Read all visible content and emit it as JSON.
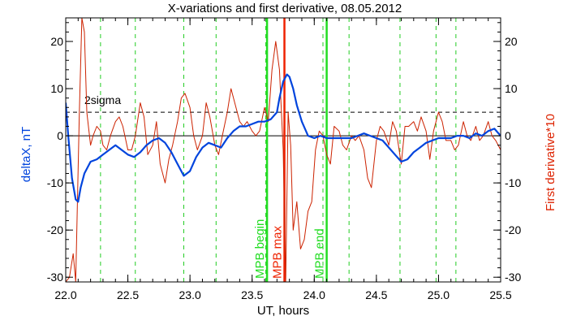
{
  "chart_data": {
    "type": "line",
    "title": "X-variations and first derivative, 08.05.2012",
    "xlabel": "UT, hours",
    "ylabel_left": "deltaX, nT",
    "ylabel_right": "First derivative*10",
    "xlim": [
      22.0,
      25.5
    ],
    "ylim": [
      -31,
      25
    ],
    "x_ticks": [
      "22.0",
      "22.5",
      "23.0",
      "23.5",
      "24.0",
      "24.5",
      "25.0",
      "25.5"
    ],
    "y_ticks": [
      "-30",
      "-20",
      "-10",
      "0",
      "10",
      "20"
    ],
    "threshold": {
      "label": "2sigma",
      "value": 5
    },
    "colors": {
      "deltax": "#0044dd",
      "derivative": "#cc2200",
      "mpb": "#22dd22",
      "mpb_max": "#ee2200",
      "dashed": "#22cc22"
    },
    "dashed_lines": [
      22.28,
      22.56,
      22.95,
      23.21,
      23.61,
      23.76,
      24.07,
      24.28,
      24.69,
      24.98,
      25.14
    ],
    "markers": [
      {
        "label": "MPB begin",
        "x": 23.62,
        "kind": "mpb"
      },
      {
        "label": "MPB max",
        "x": 23.76,
        "kind": "mpb_max"
      },
      {
        "label": "MPB end",
        "x": 24.1,
        "kind": "mpb"
      }
    ],
    "series": [
      {
        "name": "deltaX, nT",
        "x": [
          22.0,
          22.02,
          22.05,
          22.08,
          22.1,
          22.12,
          22.15,
          22.2,
          22.25,
          22.3,
          22.35,
          22.4,
          22.45,
          22.5,
          22.55,
          22.6,
          22.65,
          22.7,
          22.75,
          22.8,
          22.85,
          22.9,
          22.95,
          23.0,
          23.05,
          23.1,
          23.15,
          23.2,
          23.25,
          23.3,
          23.35,
          23.4,
          23.45,
          23.5,
          23.55,
          23.6,
          23.65,
          23.7,
          23.72,
          23.75,
          23.78,
          23.8,
          23.83,
          23.86,
          23.9,
          23.95,
          24.0,
          24.05,
          24.1,
          24.15,
          24.2,
          24.25,
          24.3,
          24.35,
          24.4,
          24.45,
          24.5,
          24.55,
          24.6,
          24.65,
          24.7,
          24.75,
          24.8,
          24.85,
          24.9,
          24.95,
          25.0,
          25.05,
          25.1,
          25.15,
          25.2,
          25.25,
          25.3,
          25.35,
          25.4,
          25.45,
          25.5
        ],
        "y": [
          7,
          0,
          -9,
          -13.5,
          -14,
          -11,
          -8,
          -5.5,
          -5,
          -4,
          -3,
          -2,
          -3,
          -4,
          -4.5,
          -3.5,
          -2,
          -1,
          -0.5,
          -1.5,
          -3.5,
          -6,
          -8.5,
          -7.5,
          -4.5,
          -2.5,
          -1.5,
          -2,
          -2.5,
          -0.5,
          1,
          2,
          2,
          2.5,
          3,
          3,
          3.5,
          5,
          8,
          11.5,
          13,
          12.5,
          10,
          6.5,
          3,
          0,
          -0.5,
          0,
          -0.5,
          -0.5,
          -0.5,
          -0.5,
          -0.5,
          0,
          0.5,
          0,
          -0.5,
          -1,
          -2.5,
          -4,
          -5.5,
          -5,
          -3.5,
          -2.5,
          -1.5,
          -1,
          -0.5,
          -0.5,
          -0.5,
          0,
          0,
          -0.5,
          0.5,
          0,
          1,
          1.5,
          0
        ]
      },
      {
        "name": "First derivative*10",
        "x": [
          22.0,
          22.03,
          22.06,
          22.08,
          22.11,
          22.13,
          22.15,
          22.17,
          22.2,
          22.22,
          22.25,
          22.28,
          22.3,
          22.33,
          22.36,
          22.4,
          22.43,
          22.46,
          22.5,
          22.53,
          22.56,
          22.6,
          22.63,
          22.66,
          22.7,
          22.73,
          22.76,
          22.8,
          22.83,
          22.86,
          22.9,
          22.93,
          22.96,
          23.0,
          23.03,
          23.06,
          23.1,
          23.13,
          23.16,
          23.2,
          23.23,
          23.26,
          23.3,
          23.33,
          23.36,
          23.4,
          23.43,
          23.46,
          23.5,
          23.53,
          23.56,
          23.6,
          23.63,
          23.66,
          23.69,
          23.72,
          23.75,
          23.77,
          23.79,
          23.81,
          23.83,
          23.86,
          23.89,
          23.92,
          23.95,
          23.98,
          24.01,
          24.04,
          24.07,
          24.1,
          24.13,
          24.16,
          24.2,
          24.23,
          24.26,
          24.3,
          24.33,
          24.36,
          24.4,
          24.43,
          24.46,
          24.5,
          24.53,
          24.56,
          24.6,
          24.63,
          24.66,
          24.7,
          24.73,
          24.76,
          24.8,
          24.83,
          24.86,
          24.9,
          24.93,
          24.96,
          25.0,
          25.03,
          25.06,
          25.1,
          25.13,
          25.16,
          25.2,
          25.23,
          25.26,
          25.3,
          25.33,
          25.36,
          25.4,
          25.43,
          25.46,
          25.5
        ],
        "y": [
          -31,
          -30,
          -25,
          -31,
          5,
          25,
          22,
          5,
          -2,
          0,
          2,
          1,
          -2,
          -3,
          0,
          3,
          4,
          2,
          -3,
          -3,
          0,
          7,
          4,
          -4,
          -2,
          3,
          -6,
          -10,
          -5,
          -2,
          3,
          8,
          9,
          6,
          0,
          -3,
          0,
          7,
          4,
          -2,
          -4,
          0,
          5,
          10,
          7,
          3,
          2,
          3,
          1,
          0,
          1,
          6,
          3,
          14,
          20,
          14,
          -3,
          -31,
          5,
          -2,
          -20,
          -14,
          -24,
          -22,
          -16,
          -14,
          -3,
          1,
          0,
          -4,
          -6,
          2,
          1,
          -2,
          -3,
          0,
          -1,
          0,
          -3,
          -9,
          -11,
          -1,
          2,
          1,
          -2,
          3,
          1,
          -6,
          2,
          2,
          3,
          1,
          4,
          1,
          -5,
          1,
          5,
          3,
          -1,
          -1,
          -3,
          -2,
          3,
          0,
          -1,
          2,
          -1,
          0,
          3,
          0,
          -1,
          -3
        ]
      }
    ]
  }
}
